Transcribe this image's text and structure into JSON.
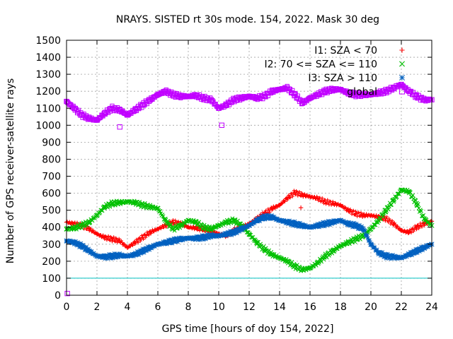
{
  "chart_data": {
    "type": "scatter",
    "title": "NRAYS. SISTED rt 30s mode. 154, 2022. Mask 30 deg",
    "xlabel": "GPS time [hours of doy 154, 2022]",
    "ylabel": "Number of GPS receiver-satellite rays",
    "xlim": [
      0,
      24
    ],
    "ylim": [
      0,
      1500
    ],
    "x_ticks": [
      0,
      2,
      4,
      6,
      8,
      10,
      12,
      14,
      16,
      18,
      20,
      22,
      24
    ],
    "y_ticks": [
      0,
      100,
      200,
      300,
      400,
      500,
      600,
      700,
      800,
      900,
      1000,
      1100,
      1200,
      1300,
      1400,
      1500
    ],
    "grid": true,
    "legend_position": "top-right",
    "threshold_line": {
      "value": 100,
      "color": "#00c0c0"
    },
    "series": [
      {
        "name": "I1: SZA < 70",
        "color": "#ff0000",
        "marker": "plus",
        "x": [
          0,
          0.5,
          1,
          1.5,
          2,
          2.5,
          3,
          3.5,
          4,
          4.5,
          5,
          5.5,
          6,
          6.5,
          7,
          7.5,
          8,
          8.5,
          9,
          9.5,
          10,
          10.5,
          11,
          11.5,
          12,
          12.5,
          13,
          13.5,
          14,
          14.5,
          15,
          15.5,
          16,
          16.5,
          17,
          17.5,
          18,
          18.5,
          19,
          19.5,
          20,
          20.5,
          21,
          21.5,
          22,
          22.5,
          23,
          23.5,
          24
        ],
        "y": [
          430,
          420,
          410,
          390,
          360,
          340,
          330,
          320,
          280,
          310,
          340,
          370,
          390,
          410,
          430,
          420,
          400,
          395,
          390,
          380,
          360,
          350,
          380,
          400,
          420,
          450,
          480,
          510,
          530,
          570,
          605,
          590,
          580,
          570,
          550,
          540,
          530,
          500,
          480,
          470,
          470,
          460,
          450,
          420,
          380,
          370,
          400,
          420,
          435
        ]
      },
      {
        "name": "I2: 70 <= SZA <= 110",
        "color": "#00c000",
        "marker": "cross",
        "x": [
          0,
          0.5,
          1,
          1.5,
          2,
          2.5,
          3,
          3.5,
          4,
          4.5,
          5,
          5.5,
          6,
          6.5,
          7,
          7.5,
          8,
          8.5,
          9,
          9.5,
          10,
          10.5,
          11,
          11.5,
          12,
          12.5,
          13,
          13.5,
          14,
          14.5,
          15,
          15.5,
          16,
          16.5,
          17,
          17.5,
          18,
          18.5,
          19,
          19.5,
          20,
          20.5,
          21,
          21.5,
          22,
          22.5,
          23,
          23.5,
          24
        ],
        "y": [
          390,
          395,
          410,
          430,
          470,
          520,
          540,
          545,
          550,
          545,
          530,
          520,
          510,
          440,
          390,
          410,
          440,
          430,
          400,
          390,
          410,
          430,
          440,
          410,
          360,
          310,
          270,
          240,
          220,
          200,
          170,
          150,
          160,
          190,
          230,
          260,
          290,
          310,
          330,
          350,
          390,
          440,
          500,
          560,
          620,
          610,
          540,
          450,
          410
        ]
      },
      {
        "name": "I3: SZA > 110",
        "color": "#0060c0",
        "marker": "star",
        "x": [
          0,
          0.5,
          1,
          1.5,
          2,
          2.5,
          3,
          3.5,
          4,
          4.5,
          5,
          5.5,
          6,
          6.5,
          7,
          7.5,
          8,
          8.5,
          9,
          9.5,
          10,
          10.5,
          11,
          11.5,
          12,
          12.5,
          13,
          13.5,
          14,
          14.5,
          15,
          15.5,
          16,
          16.5,
          17,
          17.5,
          18,
          18.5,
          19,
          19.5,
          20,
          20.5,
          21,
          21.5,
          22,
          22.5,
          23,
          23.5,
          24
        ],
        "y": [
          320,
          310,
          290,
          260,
          230,
          225,
          230,
          235,
          230,
          240,
          260,
          280,
          300,
          310,
          320,
          330,
          335,
          335,
          340,
          350,
          350,
          360,
          370,
          390,
          410,
          440,
          460,
          460,
          440,
          430,
          420,
          410,
          400,
          410,
          420,
          430,
          440,
          420,
          410,
          390,
          300,
          250,
          230,
          225,
          220,
          240,
          260,
          280,
          300
        ]
      },
      {
        "name": "global",
        "color": "#c000ff",
        "marker": "square",
        "x": [
          0,
          0.5,
          1,
          1.5,
          2,
          2.5,
          3,
          3.5,
          4,
          4.5,
          5,
          5.5,
          6,
          6.5,
          7,
          7.5,
          8,
          8.5,
          9,
          9.5,
          10,
          10.5,
          11,
          11.5,
          12,
          12.5,
          13,
          13.5,
          14,
          14.5,
          15,
          15.5,
          16,
          16.5,
          17,
          17.5,
          18,
          18.5,
          19,
          19.5,
          20,
          20.5,
          21,
          21.5,
          22,
          22.5,
          23,
          23.5,
          24
        ],
        "y": [
          1140,
          1100,
          1060,
          1040,
          1030,
          1070,
          1100,
          1090,
          1060,
          1090,
          1120,
          1150,
          1180,
          1200,
          1180,
          1170,
          1170,
          1175,
          1160,
          1150,
          1100,
          1120,
          1150,
          1160,
          1170,
          1160,
          1170,
          1200,
          1210,
          1220,
          1180,
          1130,
          1160,
          1180,
          1200,
          1210,
          1210,
          1190,
          1180,
          1180,
          1180,
          1190,
          1200,
          1220,
          1240,
          1200,
          1170,
          1150,
          1150
        ]
      }
    ],
    "outliers": [
      {
        "series": "I1: SZA < 70",
        "x": 15.4,
        "y": 515
      },
      {
        "series": "global",
        "x": 3.5,
        "y": 990
      },
      {
        "series": "global",
        "x": 10.2,
        "y": 1000
      },
      {
        "series": "global",
        "x": 0.05,
        "y": 10
      }
    ]
  }
}
